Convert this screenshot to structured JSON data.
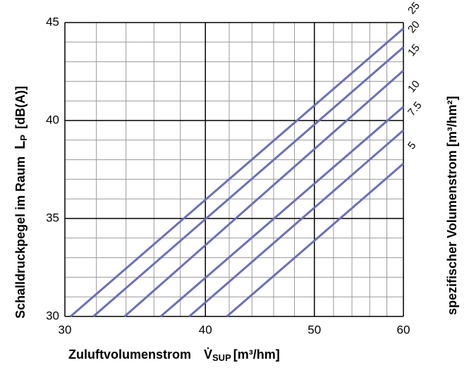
{
  "chart_data": {
    "type": "line",
    "xscale": "log",
    "xlim": [
      30,
      60
    ],
    "xticks": [
      30,
      40,
      50,
      60
    ],
    "xminor": [
      32,
      34,
      36,
      38,
      42,
      44,
      46,
      48,
      52,
      54,
      56,
      58
    ],
    "ylim": [
      30,
      45
    ],
    "yticks": [
      30,
      35,
      40,
      45
    ],
    "yminor": [
      31,
      32,
      33,
      34,
      36,
      37,
      38,
      39,
      41,
      42,
      43,
      44
    ],
    "grid": true,
    "ylabel": "Schalldruckpegel im Raum",
    "ylabel_symbol": "L",
    "ylabel_sub": "P",
    "ylabel_unit": "[dB(A)]",
    "xlabel": "Zuluftvolumenstrom",
    "xlabel_symbol": "V̇",
    "xlabel_sub": "SUP",
    "xlabel_unit": "[m³/hm]",
    "y2label": "spezifischer Volumenstrom  [m³/hm²]",
    "series": [
      {
        "name": "25",
        "color": "#6b70b3",
        "x": [
          30.35,
          60
        ],
        "values": [
          30,
          44.7
        ]
      },
      {
        "name": "20",
        "color": "#6b70b3",
        "x": [
          31.8,
          60
        ],
        "values": [
          30,
          43.74
        ]
      },
      {
        "name": "15",
        "color": "#6b70b3",
        "x": [
          33.9,
          60
        ],
        "values": [
          30,
          42.55
        ]
      },
      {
        "name": "10",
        "color": "#6b70b3",
        "x": [
          36.5,
          60
        ],
        "values": [
          30,
          40.7
        ]
      },
      {
        "name": "7.5",
        "color": "#6b70b3",
        "x": [
          38.7,
          60
        ],
        "values": [
          30,
          39.5
        ]
      },
      {
        "name": "5",
        "color": "#6b70b3",
        "x": [
          41.8,
          60
        ],
        "values": [
          30,
          37.8
        ]
      }
    ]
  }
}
